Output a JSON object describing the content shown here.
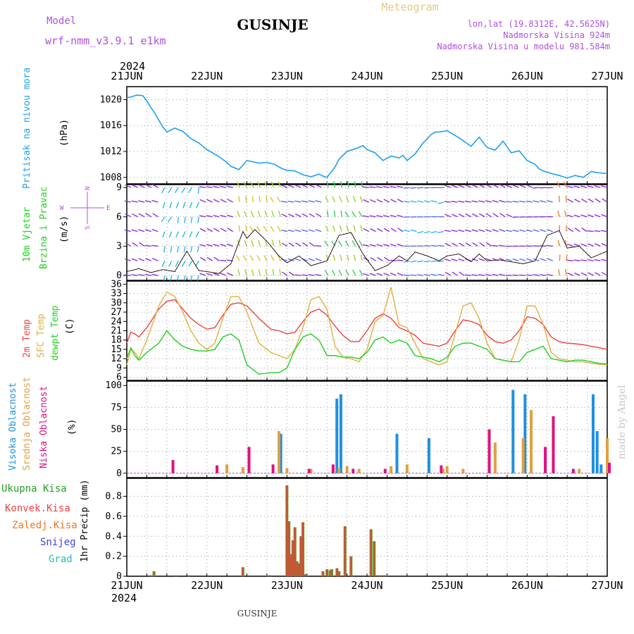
{
  "header": {
    "model_label": "Model",
    "model_name": "wrf-nmm_v3.9.1 e1km",
    "station": "GUSINJE",
    "meteogram_label": "Meteogram",
    "lonlat": "lon,lat (19.8312E, 42.5625N)",
    "elevation": "Nadmorska Visina 924m",
    "model_elevation": "Nadmorska Visina u modelu 981.584m",
    "year": "2024",
    "footer_station": "GUSINJE",
    "credit": "made by Angel"
  },
  "colors": {
    "pressure": "#1ea0f0",
    "temp2m": "#f04040",
    "sfc": "#e0b040",
    "dew": "#20d020",
    "high_cloud": "#1e90e0",
    "mid_cloud": "#e0a040",
    "low_cloud": "#e01080",
    "precip_total": "#6a8a20",
    "precip_conv": "#f04040",
    "wind_purple": "#8a30d8"
  },
  "chart_data": [
    {
      "panel": "pressure",
      "type": "line",
      "ylabel_lines": [
        "Pritisak na nivou mora",
        "(hPa)"
      ],
      "ylim": [
        1007,
        1022
      ],
      "yticks": [
        1008,
        1012,
        1016,
        1020
      ],
      "x_days": [
        "21JUN",
        "22JUN",
        "23JUN",
        "24JUN",
        "25JUN",
        "26JUN",
        "27JUN"
      ],
      "x": [
        0,
        0.1,
        0.25,
        0.4,
        0.5,
        0.6,
        0.7,
        0.8,
        0.9,
        1.0,
        1.2,
        1.4,
        1.6,
        1.8,
        2.0,
        2.3,
        2.5,
        2.6,
        2.8,
        3.0,
        3.3,
        3.5,
        3.7,
        3.8,
        3.9,
        4.0,
        4.2,
        4.4,
        4.6,
        4.8,
        4.9,
        5.0,
        5.2,
        5.3,
        5.5,
        5.7,
        5.9,
        6.0,
        6.2,
        6.4,
        6.6,
        6.8,
        6.9,
        7.0,
        7.2,
        7.4,
        7.6,
        7.7,
        7.8,
        8.0,
        8.3,
        8.6,
        8.8,
        9.0,
        9.2,
        9.4,
        9.6,
        9.8,
        10.0,
        10.2,
        10.3,
        10.4,
        10.6,
        10.8,
        11.0,
        11.2,
        11.4,
        11.6,
        11.8,
        12.0
      ],
      "values": [
        1020.3,
        1020.4,
        1020.7,
        1020.6,
        1019.8,
        1018.8,
        1017.9,
        1016.8,
        1015.8,
        1015.0,
        1015.6,
        1015.1,
        1014.0,
        1013.3,
        1012.3,
        1011.2,
        1010.3,
        1009.7,
        1009.2,
        1010.6,
        1010.2,
        1010.3,
        1010.0,
        1009.6,
        1009.3,
        1009.1,
        1009.0,
        1008.4,
        1008.1,
        1008.5,
        1008.2,
        1008.0,
        1009.6,
        1010.8,
        1012.0,
        1012.4,
        1012.9,
        1012.3,
        1011.8,
        1010.6,
        1011.3,
        1011.0,
        1011.4,
        1010.6,
        1011.6,
        1013.3,
        1014.6,
        1015.0,
        1015.0,
        1015.2,
        1014.1,
        1012.8,
        1014.2,
        1012.6,
        1012.2,
        1013.6,
        1011.8,
        1012.1,
        1010.6,
        1010.0,
        1009.3,
        1009.0,
        1008.6,
        1008.3,
        1007.9,
        1008.3,
        1008.0,
        1008.9,
        1008.7,
        1008.6
      ]
    },
    {
      "panel": "wind",
      "type": "line",
      "ylabel_lines": [
        "10m Vjetar",
        "Brzina i Pravac",
        "(m/s)"
      ],
      "compass_n": "N",
      "compass_s": "S",
      "compass_w": "W",
      "compass_e": "E",
      "ylim": [
        -0.5,
        9.3
      ],
      "yticks": [
        0,
        3,
        6,
        9
      ],
      "x": [
        0,
        0.3,
        0.6,
        0.9,
        1.2,
        1.5,
        1.8,
        2.0,
        2.3,
        2.6,
        2.9,
        3.0,
        3.2,
        3.5,
        3.8,
        4.0,
        4.3,
        4.6,
        5.0,
        5.3,
        5.6,
        5.9,
        6.2,
        6.5,
        6.8,
        7.0,
        7.2,
        7.5,
        7.8,
        8.0,
        8.3,
        8.6,
        8.8,
        9.0,
        9.3,
        9.6,
        9.9,
        10.2,
        10.5,
        10.8,
        11.0,
        11.3,
        11.6,
        12.0
      ],
      "values": [
        0.4,
        0.7,
        0.3,
        0.6,
        0.4,
        2.5,
        0.5,
        0.4,
        0.2,
        1.2,
        4.5,
        3.8,
        4.7,
        3.5,
        2.0,
        1.3,
        2.0,
        1.0,
        1.5,
        4.1,
        4.4,
        2.2,
        0.5,
        1.0,
        2.0,
        1.5,
        2.4,
        2.0,
        1.5,
        2.0,
        2.2,
        1.4,
        2.2,
        1.5,
        1.6,
        1.4,
        1.2,
        1.5,
        4.1,
        4.6,
        2.8,
        3.0,
        1.8,
        2.5
      ]
    },
    {
      "panel": "temperature",
      "type": "line",
      "ylabel_lines": [
        "2m Temp",
        "SFC Temp",
        "dewpt Temp",
        "(C)"
      ],
      "ylim": [
        5,
        37
      ],
      "yticks": [
        6,
        9,
        12,
        15,
        18,
        21,
        24,
        27,
        30,
        33,
        36
      ],
      "x": [
        0,
        0.1,
        0.2,
        0.3,
        0.5,
        0.8,
        1.0,
        1.2,
        1.4,
        1.6,
        1.8,
        2.0,
        2.2,
        2.4,
        2.6,
        2.8,
        3.0,
        3.3,
        3.6,
        3.8,
        4.0,
        4.2,
        4.4,
        4.6,
        4.8,
        5.0,
        5.2,
        5.4,
        5.6,
        5.8,
        6.0,
        6.2,
        6.4,
        6.6,
        6.8,
        7.0,
        7.2,
        7.4,
        7.6,
        7.8,
        8.0,
        8.2,
        8.4,
        8.6,
        8.8,
        9.0,
        9.2,
        9.4,
        9.6,
        9.8,
        10.0,
        10.2,
        10.4,
        10.6,
        10.8,
        11.0,
        11.2,
        11.4,
        11.6,
        11.8,
        12.0
      ],
      "series": [
        {
          "name": "2m Temp",
          "color": "#f04040",
          "values": [
            17,
            20.5,
            20,
            19,
            22,
            28,
            30.5,
            31,
            28,
            25,
            23,
            21.5,
            22,
            26,
            29.5,
            30,
            29,
            25,
            21.5,
            21,
            20,
            20.5,
            24,
            27,
            28,
            26,
            22.5,
            19.5,
            17.5,
            17.5,
            21,
            25,
            26.5,
            25,
            22,
            21,
            19.5,
            17,
            16.5,
            16,
            17,
            21,
            24.5,
            24,
            23,
            19.5,
            17.5,
            17,
            18,
            21,
            25.5,
            25,
            23,
            19,
            17.5,
            17,
            16.8,
            16.5,
            16,
            15.5,
            15
          ]
        },
        {
          "name": "SFC Temp",
          "color": "#e0b040",
          "values": [
            10,
            15,
            14,
            12,
            18,
            29,
            33.5,
            32,
            27,
            21,
            17,
            15,
            17,
            25,
            32,
            32,
            27,
            17,
            14,
            13,
            12,
            15,
            22,
            31,
            32,
            28,
            16,
            12.5,
            12,
            11,
            15,
            24,
            26,
            35,
            23,
            22,
            17,
            12,
            11,
            10,
            11,
            20,
            29,
            30,
            25,
            17,
            12,
            11.5,
            11,
            18,
            29,
            29,
            23,
            14,
            12,
            11.5,
            11,
            11,
            10.5,
            10.2,
            10
          ]
        },
        {
          "name": "dewpt Temp",
          "color": "#20d020",
          "values": [
            12,
            15.5,
            13,
            11.5,
            14,
            17,
            21,
            18,
            16,
            15,
            14.5,
            14.5,
            15,
            19,
            20,
            18,
            10,
            7,
            7.5,
            7.5,
            9,
            15,
            19,
            20,
            18,
            13,
            13,
            12.5,
            12.5,
            12,
            14,
            18,
            19,
            17,
            18,
            17,
            13,
            12.5,
            12,
            11,
            12.5,
            16,
            17,
            17,
            16,
            15,
            12,
            11.5,
            11,
            11,
            14,
            15,
            16,
            12,
            11.5,
            11,
            11.5,
            11.5,
            11,
            10.5,
            10.3
          ]
        }
      ]
    },
    {
      "panel": "cloud",
      "type": "bar",
      "ylabel_lines": [
        "Visoka Oblacnost",
        "Srednja Oblacnost",
        "Niska Oblacnost",
        "(%)"
      ],
      "ylim": [
        -5,
        105
      ],
      "yticks": [
        0,
        25,
        50,
        75,
        100
      ],
      "series": [
        {
          "name": "Visoka Oblacnost",
          "color": "#1e90e0",
          "x": [
            3.9,
            5.3,
            5.4,
            6.8,
            7.6,
            9.7,
            10.0,
            11.7,
            11.8,
            11.9
          ],
          "values": [
            45,
            85,
            90,
            45,
            40,
            95,
            90,
            90,
            48,
            10
          ]
        },
        {
          "name": "Srednja Oblacnost",
          "color": "#e0a040",
          "x": [
            2.5,
            2.9,
            3.8,
            4.0,
            4.6,
            5.3,
            5.5,
            5.8,
            6.6,
            7.0,
            7.9,
            8.0,
            8.4,
            9.2,
            9.9,
            10.1,
            11.3,
            12.0
          ],
          "values": [
            10,
            7,
            48,
            6,
            5,
            6,
            8,
            5,
            8,
            10,
            5,
            8,
            5,
            35,
            40,
            72,
            5,
            40
          ]
        },
        {
          "name": "Niska Oblacnost",
          "color": "#e01080",
          "x": [
            1.1,
            2.2,
            3.0,
            3.6,
            4.5,
            5.1,
            5.6,
            6.4,
            7.8,
            9.0,
            10.4,
            10.6,
            11.1,
            12.0
          ],
          "values": [
            15,
            9,
            30,
            10,
            5,
            10,
            5,
            5,
            9,
            50,
            30,
            65,
            5,
            12
          ]
        }
      ]
    },
    {
      "panel": "precip",
      "type": "bar",
      "ylabel_lines": [
        "1hr Precip (mm)"
      ],
      "legend": [
        "Ukupna Kisa",
        "Konvek.Kisa",
        "Zaledj.Kisa",
        "Snijeg",
        "Grad"
      ],
      "legend_colors": [
        "#20a020",
        "#f04040",
        "#f07820",
        "#4040e0",
        "#20c0b0"
      ],
      "ylim": [
        0,
        0.98
      ],
      "yticks": [
        0,
        0.2,
        0.4,
        0.6,
        0.8
      ],
      "yticklabels": [
        "0",
        "0.2",
        "0.4",
        "0.6",
        "0.8"
      ],
      "series": [
        {
          "name": "Ukupna Kisa",
          "color": "#6a8a20",
          "x": [
            0.6,
            0.68,
            1.23,
            1.55,
            2.9,
            3.52,
            3.58,
            4.0,
            4.05,
            4.1,
            4.15,
            4.2,
            4.25,
            4.3,
            4.35,
            4.4,
            4.45,
            4.5,
            4.9,
            5.0,
            5.08,
            5.12,
            5.25,
            5.3,
            5.45,
            5.6,
            5.65,
            6.1,
            6.18,
            6.25,
            6.3,
            6.35,
            6.4,
            6.45,
            6.5,
            10.6,
            10.67
          ],
          "values": [
            0.01,
            0.05,
            0.01,
            0.01,
            0.09,
            0.01,
            0.01,
            0.91,
            0.55,
            0.22,
            0.36,
            0.49,
            0.15,
            0.13,
            0.4,
            0.54,
            0.02,
            0.01,
            0.05,
            0.07,
            0.06,
            0.07,
            0.08,
            0.05,
            0.5,
            0.2,
            0.01,
            0.47,
            0.35,
            0.01,
            0.01,
            0.01,
            0.01,
            0.01,
            0.01,
            0.01,
            0.01
          ]
        }
      ]
    }
  ]
}
